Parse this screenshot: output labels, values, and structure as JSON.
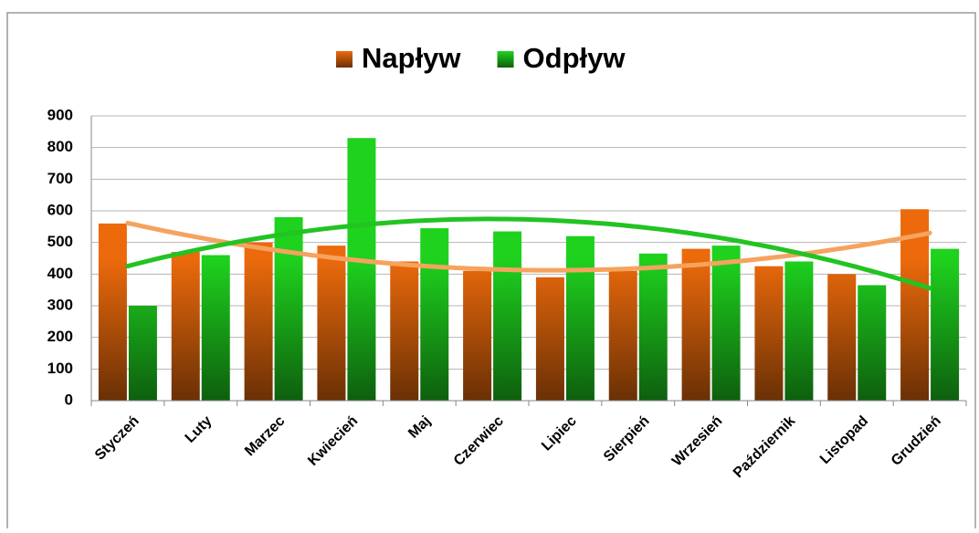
{
  "chart_data": {
    "type": "bar",
    "categories": [
      "Styczeń",
      "Luty",
      "Marzec",
      "Kwiecień",
      "Maj",
      "Czerwiec",
      "Lipiec",
      "Sierpień",
      "Wrzesień",
      "Październik",
      "Listopad",
      "Grudzień"
    ],
    "series": [
      {
        "name": "Napływ",
        "color": "#ec6a0c",
        "trend_color": "#f5a35e",
        "values": [
          560,
          470,
          500,
          490,
          440,
          410,
          390,
          410,
          480,
          425,
          400,
          605
        ]
      },
      {
        "name": "Odpływ",
        "color": "#1ed21e",
        "trend_color": "#22c322",
        "values": [
          300,
          460,
          580,
          830,
          545,
          535,
          520,
          465,
          490,
          440,
          365,
          480
        ]
      }
    ],
    "trendline": {
      "type": "polynomial",
      "order": 2
    },
    "ylim": [
      0,
      900
    ],
    "yticks": [
      0,
      100,
      200,
      300,
      400,
      500,
      600,
      700,
      800,
      900
    ],
    "grid": true,
    "legend": "top"
  }
}
